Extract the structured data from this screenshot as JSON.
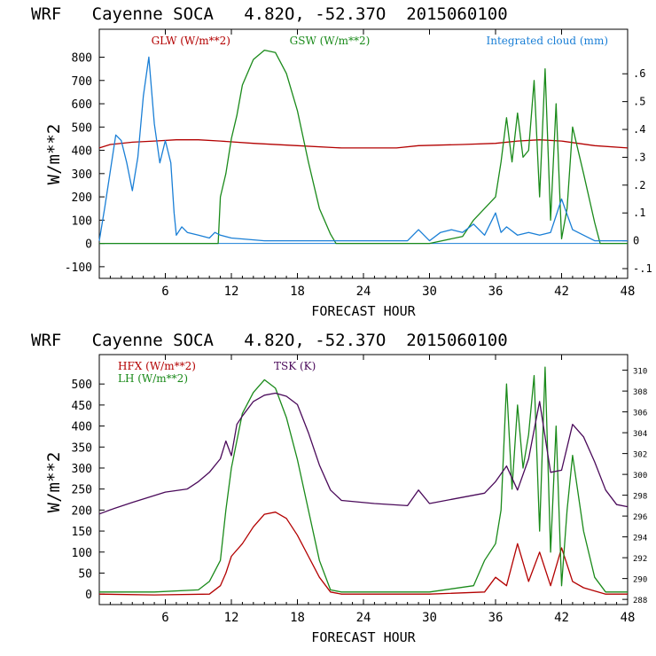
{
  "charts": [
    {
      "title": "WRF   Cayenne SOCA   4.82O, -52.37O  2015060100",
      "xlabel": "FORECAST HOUR",
      "ylabel": "W/m**2",
      "x_ticks": [
        "6",
        "12",
        "18",
        "24",
        "30",
        "36",
        "42",
        "48"
      ],
      "left_ticks": [
        "-100",
        "0",
        "100",
        "200",
        "300",
        "400",
        "500",
        "600",
        "700",
        "800"
      ],
      "right_ticks": [
        "-.1",
        "0",
        ".1",
        ".2",
        ".3",
        ".4",
        ".5",
        ".6"
      ],
      "legend": [
        "GLW (W/m**2)",
        "GSW (W/m**2)",
        "Integrated cloud (mm)"
      ],
      "colors": [
        "#b30000",
        "#1a8a1a",
        "#1a7fd6"
      ]
    },
    {
      "title": "WRF   Cayenne SOCA   4.82O, -52.37O  2015060100",
      "xlabel": "FORECAST HOUR",
      "ylabel": "W/m**2",
      "x_ticks": [
        "6",
        "12",
        "18",
        "24",
        "30",
        "36",
        "42",
        "48"
      ],
      "left_ticks": [
        "0",
        "50",
        "100",
        "150",
        "200",
        "250",
        "300",
        "350",
        "400",
        "450",
        "500"
      ],
      "right_ticks": [
        "288",
        "290",
        "292",
        "294",
        "296",
        "298",
        "300",
        "302",
        "304",
        "306",
        "308",
        "310"
      ],
      "legend": [
        "HFX (W/m**2)",
        "LH (W/m**2)",
        "TSK (K)"
      ],
      "colors": [
        "#b30000",
        "#1a8a1a",
        "#4a0a5a"
      ]
    }
  ],
  "chart_data": [
    {
      "type": "line",
      "title": "WRF   Cayenne SOCA   4.82O, -52.37O  2015060100",
      "xlabel": "FORECAST HOUR",
      "ylabel": "W/m**2",
      "xlim": [
        0,
        48
      ],
      "ylim": [
        -150,
        920
      ],
      "y2lim": [
        -0.135,
        0.76
      ],
      "series": [
        {
          "name": "GLW (W/m**2)",
          "axis": "left",
          "x": [
            0,
            1,
            3,
            5,
            7,
            9,
            11,
            14,
            18,
            22,
            27,
            29,
            33,
            36,
            38,
            40,
            42,
            45,
            48
          ],
          "y": [
            410,
            425,
            435,
            440,
            445,
            445,
            440,
            430,
            420,
            410,
            410,
            420,
            425,
            430,
            440,
            445,
            440,
            420,
            410
          ]
        },
        {
          "name": "GSW (W/m**2)",
          "axis": "left",
          "x": [
            0,
            10.8,
            11,
            11.5,
            12,
            12.5,
            13,
            14,
            15,
            16,
            17,
            18,
            19,
            20,
            21,
            21.5,
            30,
            33,
            34,
            35,
            36,
            36.5,
            37,
            37.5,
            38,
            38.5,
            39,
            39.5,
            40,
            40.5,
            41,
            41.5,
            42,
            42.5,
            43,
            44,
            45,
            45.5,
            48
          ],
          "y": [
            0,
            0,
            200,
            300,
            450,
            550,
            680,
            790,
            830,
            820,
            730,
            570,
            350,
            150,
            40,
            0,
            0,
            30,
            100,
            150,
            200,
            350,
            540,
            350,
            560,
            370,
            400,
            700,
            200,
            750,
            100,
            600,
            20,
            150,
            500,
            300,
            90,
            0,
            0
          ]
        },
        {
          "name": "Integrated cloud (mm)",
          "axis": "right",
          "x": [
            0,
            0.5,
            1,
            1.5,
            2,
            2.5,
            3,
            3.5,
            4,
            4.5,
            5,
            5.5,
            6,
            6.5,
            6.8,
            7,
            7.5,
            8,
            9,
            10,
            10.5,
            11,
            12,
            15,
            19,
            25,
            28,
            29,
            30,
            31,
            32,
            33,
            34,
            35,
            36,
            36.5,
            37,
            38,
            39,
            40,
            41,
            42,
            43,
            44,
            45,
            48
          ],
          "y": [
            0.0,
            0.12,
            0.25,
            0.38,
            0.36,
            0.28,
            0.18,
            0.3,
            0.52,
            0.66,
            0.42,
            0.28,
            0.36,
            0.28,
            0.1,
            0.02,
            0.05,
            0.03,
            0.02,
            0.01,
            0.03,
            0.02,
            0.01,
            0.0,
            0.0,
            0.0,
            0.0,
            0.04,
            0.0,
            0.03,
            0.04,
            0.03,
            0.06,
            0.02,
            0.1,
            0.03,
            0.05,
            0.02,
            0.03,
            0.02,
            0.03,
            0.15,
            0.04,
            0.02,
            0.0,
            0.0
          ]
        }
      ]
    },
    {
      "type": "line",
      "title": "WRF   Cayenne SOCA   4.82O, -52.37O  2015060100",
      "xlabel": "FORECAST HOUR",
      "ylabel": "W/m**2",
      "xlim": [
        0,
        48
      ],
      "ylim": [
        -25,
        570
      ],
      "y2lim": [
        287.5,
        311.5
      ],
      "series": [
        {
          "name": "HFX (W/m**2)",
          "axis": "left",
          "x": [
            0,
            5,
            10,
            11,
            11.5,
            12,
            13,
            14,
            15,
            16,
            17,
            18,
            19,
            20,
            21,
            22,
            30,
            35,
            36,
            37,
            38,
            39,
            40,
            41,
            42,
            43,
            44,
            46,
            48
          ],
          "y": [
            0,
            -2,
            0,
            20,
            50,
            90,
            120,
            160,
            190,
            195,
            180,
            140,
            90,
            40,
            5,
            0,
            0,
            5,
            40,
            20,
            120,
            30,
            100,
            20,
            110,
            30,
            15,
            0,
            0
          ]
        },
        {
          "name": "LH (W/m**2)",
          "axis": "left",
          "x": [
            0,
            5,
            9,
            10,
            11,
            11.5,
            12,
            13,
            14,
            15,
            16,
            17,
            18,
            19,
            20,
            21,
            22,
            30,
            34,
            35,
            36,
            36.5,
            37,
            37.5,
            38,
            38.5,
            39,
            39.5,
            40,
            40.5,
            41,
            41.5,
            42,
            42.5,
            43,
            44,
            45,
            46,
            48
          ],
          "y": [
            5,
            5,
            10,
            30,
            80,
            200,
            300,
            430,
            480,
            510,
            490,
            420,
            320,
            200,
            80,
            10,
            5,
            5,
            20,
            80,
            120,
            200,
            500,
            250,
            450,
            300,
            380,
            520,
            150,
            540,
            100,
            400,
            20,
            200,
            330,
            150,
            40,
            5,
            5
          ]
        },
        {
          "name": "TSK (K)",
          "axis": "right",
          "x": [
            0,
            1,
            3,
            6,
            8,
            9,
            10,
            11,
            11.5,
            12,
            12.5,
            13,
            14,
            15,
            16,
            17,
            18,
            19,
            20,
            21,
            22,
            25,
            28,
            29,
            30,
            32,
            35,
            36,
            37,
            38,
            39,
            40,
            41,
            42,
            43,
            44,
            45,
            46,
            47,
            48
          ],
          "y": [
            296.2,
            296.6,
            297.3,
            298.3,
            298.6,
            299.3,
            300.2,
            301.5,
            303.2,
            301.8,
            304.8,
            305.6,
            307.0,
            307.6,
            307.8,
            307.5,
            306.7,
            304.0,
            300.9,
            298.5,
            297.5,
            297.2,
            297.0,
            298.5,
            297.2,
            297.6,
            298.2,
            299.3,
            300.8,
            298.5,
            301.5,
            307.0,
            300.2,
            300.4,
            304.8,
            303.6,
            301.2,
            298.5,
            297.1,
            296.9
          ]
        }
      ]
    }
  ]
}
